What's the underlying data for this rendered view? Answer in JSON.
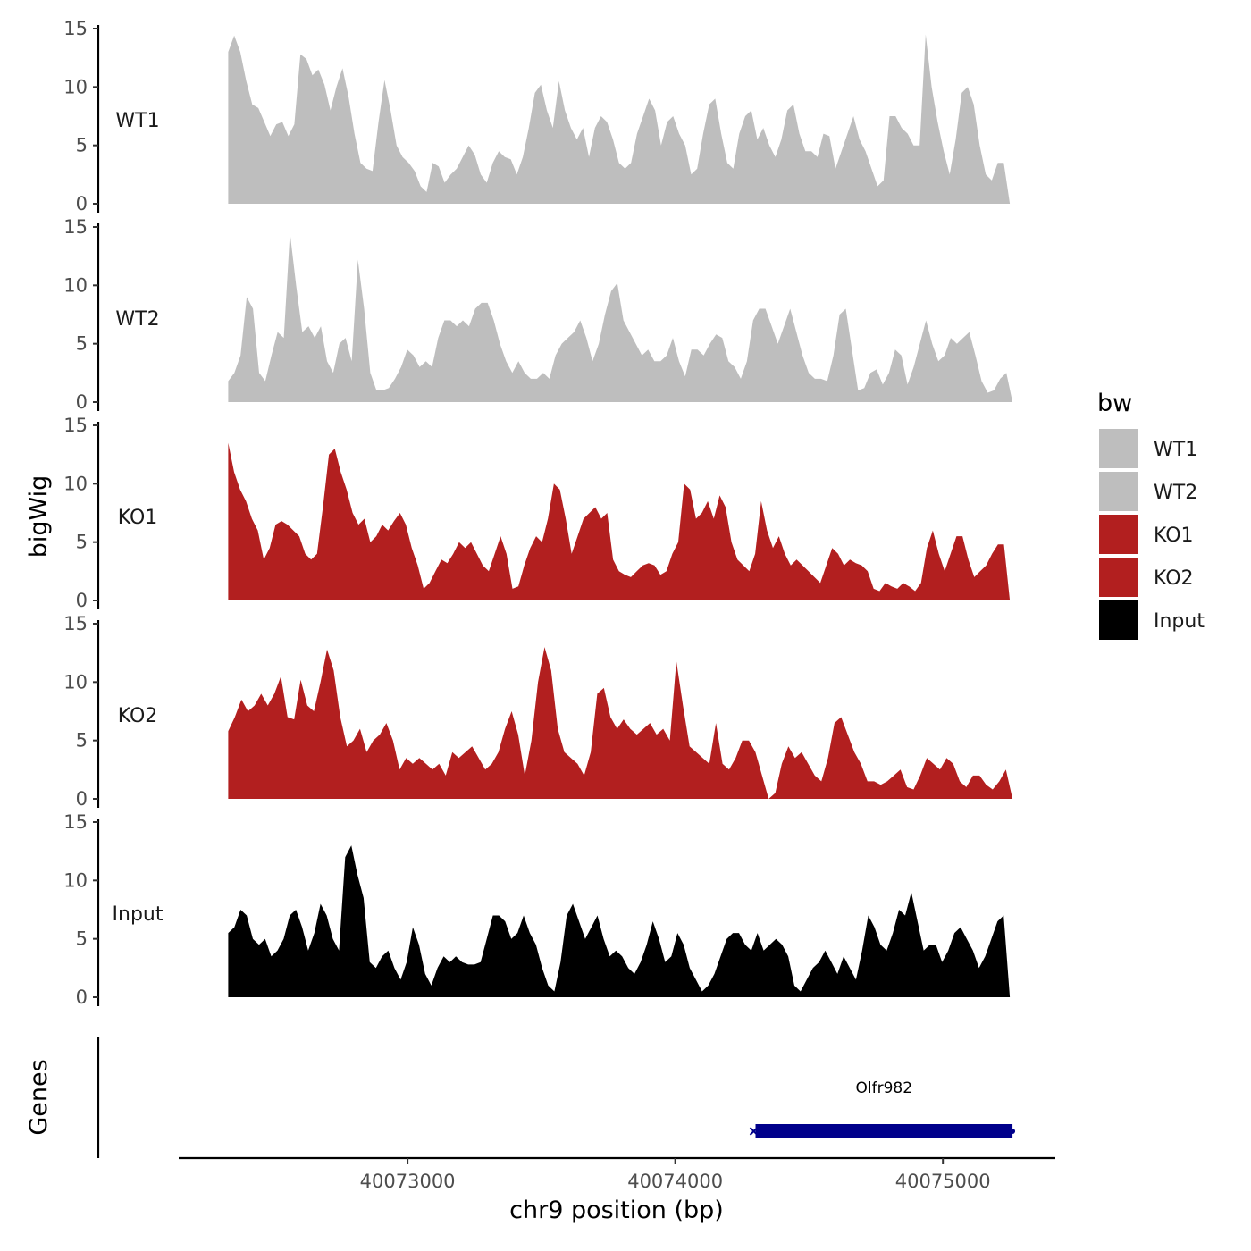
{
  "chart_data": {
    "type": "area",
    "title": "",
    "xlabel": "chr9 position (bp)",
    "ylabel": "bigWig",
    "genes_label": "Genes",
    "xlim": [
      40072145,
      40075420
    ],
    "x_ticks": [
      40073000,
      40074000,
      40075000
    ],
    "x_tick_labels": [
      "40073000",
      "40074000",
      "40075000"
    ],
    "ylim": [
      0,
      15
    ],
    "y_ticks": [
      0,
      5,
      10,
      15
    ],
    "y_tick_labels": [
      "0",
      "5",
      "10",
      "15"
    ],
    "legend_title": "bw",
    "legend": [
      {
        "name": "WT1",
        "color": "#bebebe"
      },
      {
        "name": "WT2",
        "color": "#bebebe"
      },
      {
        "name": "KO1",
        "color": "#b21f1f"
      },
      {
        "name": "KO2",
        "color": "#b21f1f"
      },
      {
        "name": "Input",
        "color": "#000000"
      }
    ],
    "series": [
      {
        "name": "WT1",
        "color": "#bebebe",
        "x_start": 40072330,
        "x_end": 40075250,
        "values": [
          13.0,
          14.4,
          13.0,
          10.5,
          8.5,
          8.2,
          7.0,
          5.8,
          6.8,
          7.0,
          5.8,
          6.8,
          12.8,
          12.4,
          11.0,
          11.5,
          10.2,
          8.0,
          10.0,
          11.6,
          9.2,
          6.0,
          3.5,
          3.0,
          2.8,
          7.0,
          10.6,
          8.0,
          5.0,
          4.0,
          3.5,
          2.8,
          1.5,
          1.0,
          3.5,
          3.2,
          1.8,
          2.5,
          3.0,
          4.0,
          5.0,
          4.2,
          2.5,
          1.8,
          3.5,
          4.5,
          4.0,
          3.8,
          2.5,
          4.0,
          6.5,
          9.5,
          10.2,
          8.0,
          6.5,
          10.5,
          8.0,
          6.5,
          5.5,
          6.5,
          4.0,
          6.5,
          7.5,
          7.0,
          5.5,
          3.5,
          3.0,
          3.5,
          6.0,
          7.5,
          9.0,
          8.0,
          5.0,
          7.0,
          7.5,
          6.0,
          5.0,
          2.5,
          3.0,
          6.0,
          8.5,
          9.0,
          6.0,
          3.5,
          3.0,
          6.0,
          7.5,
          8.0,
          5.5,
          6.5,
          5.0,
          4.0,
          5.5,
          8.0,
          8.5,
          6.0,
          4.5,
          4.5,
          4.0,
          6.0,
          5.8,
          3.0,
          4.5,
          6.0,
          7.5,
          5.5,
          4.5,
          3.0,
          1.5,
          2.0,
          7.5,
          7.5,
          6.5,
          6.0,
          5.0,
          5.0,
          14.5,
          10.0,
          7.0,
          4.5,
          2.5,
          5.5,
          9.5,
          10.0,
          8.5,
          5.0,
          2.5,
          2.0,
          3.5,
          3.5,
          0
        ]
      },
      {
        "name": "WT2",
        "color": "#bebebe",
        "x_start": 40072330,
        "x_end": 40075260,
        "values": [
          1.8,
          2.5,
          4.0,
          9.0,
          8.0,
          2.5,
          1.8,
          4.0,
          6.0,
          5.5,
          14.5,
          10.0,
          6.0,
          6.5,
          5.5,
          6.5,
          3.5,
          2.5,
          5.0,
          5.5,
          3.5,
          12.2,
          8.0,
          2.5,
          1.0,
          1.0,
          1.2,
          2.0,
          3.0,
          4.5,
          4.0,
          3.0,
          3.5,
          3.0,
          5.5,
          7.0,
          7.0,
          6.5,
          7.0,
          6.5,
          8.0,
          8.5,
          8.5,
          7.0,
          5.0,
          3.5,
          2.5,
          3.5,
          2.5,
          2.0,
          2.0,
          2.5,
          2.0,
          4.0,
          5.0,
          5.5,
          6.0,
          7.0,
          5.5,
          3.5,
          5.0,
          7.5,
          9.5,
          10.2,
          7.0,
          6.0,
          5.0,
          4.0,
          4.5,
          3.5,
          3.5,
          4.0,
          5.5,
          3.5,
          2.2,
          4.5,
          4.5,
          4.0,
          5.0,
          5.8,
          5.5,
          3.5,
          3.0,
          2.0,
          3.5,
          7.0,
          8.0,
          8.0,
          6.5,
          5.0,
          6.5,
          8.0,
          6.0,
          4.0,
          2.5,
          2.0,
          2.0,
          1.8,
          4.0,
          7.5,
          8.0,
          4.5,
          1.0,
          1.2,
          2.5,
          2.8,
          1.5,
          2.5,
          4.5,
          4.0,
          1.5,
          3.0,
          5.0,
          7.0,
          5.0,
          3.5,
          4.0,
          5.5,
          5.0,
          5.5,
          6.0,
          4.0,
          1.8,
          0.8,
          1.0,
          2.0,
          2.5,
          0
        ]
      },
      {
        "name": "KO1",
        "color": "#b21f1f",
        "x_start": 40072330,
        "x_end": 40075250,
        "values": [
          13.5,
          11.0,
          9.5,
          8.5,
          7.0,
          6.0,
          3.5,
          4.5,
          6.5,
          6.8,
          6.5,
          6.0,
          5.5,
          4.0,
          3.5,
          4.0,
          8.0,
          12.5,
          13.0,
          11.0,
          9.5,
          7.5,
          6.5,
          7.0,
          5.0,
          5.5,
          6.5,
          6.0,
          6.8,
          7.5,
          6.5,
          4.5,
          3.0,
          1.0,
          1.5,
          2.5,
          3.5,
          3.2,
          4.0,
          5.0,
          4.5,
          5.0,
          4.0,
          3.0,
          2.5,
          4.0,
          5.5,
          4.0,
          1.0,
          1.2,
          3.0,
          4.5,
          5.5,
          5.0,
          7.0,
          10.0,
          9.5,
          7.0,
          4.0,
          5.5,
          7.0,
          7.5,
          8.0,
          7.0,
          7.5,
          3.5,
          2.5,
          2.2,
          2.0,
          2.5,
          3.0,
          3.2,
          3.0,
          2.2,
          2.5,
          4.0,
          5.0,
          10.0,
          9.5,
          7.0,
          7.5,
          8.5,
          7.0,
          9.0,
          8.0,
          5.0,
          3.5,
          3.0,
          2.5,
          4.0,
          8.5,
          6.0,
          4.5,
          5.5,
          4.0,
          3.0,
          3.5,
          3.0,
          2.5,
          2.0,
          1.5,
          3.0,
          4.5,
          4.0,
          3.0,
          3.5,
          3.2,
          3.0,
          2.5,
          1.0,
          0.8,
          1.5,
          1.2,
          1.0,
          1.5,
          1.2,
          0.8,
          1.5,
          4.5,
          6.0,
          4.0,
          2.5,
          4.0,
          5.5,
          5.5,
          3.5,
          2.0,
          2.5,
          3.0,
          4.0,
          4.8,
          4.8,
          0
        ]
      },
      {
        "name": "KO2",
        "color": "#b21f1f",
        "x_start": 40072330,
        "x_end": 40075260,
        "values": [
          5.8,
          7.0,
          8.5,
          7.5,
          8.0,
          9.0,
          8.0,
          9.0,
          10.5,
          7.0,
          6.8,
          10.2,
          8.0,
          7.5,
          10.0,
          12.8,
          11.0,
          7.0,
          4.5,
          5.0,
          6.0,
          4.0,
          5.0,
          5.5,
          6.5,
          5.0,
          2.5,
          3.5,
          3.0,
          3.5,
          3.0,
          2.5,
          3.0,
          2.0,
          4.0,
          3.5,
          4.0,
          4.5,
          3.5,
          2.5,
          3.0,
          4.0,
          6.0,
          7.5,
          5.5,
          2.0,
          5.0,
          10.0,
          13.0,
          11.0,
          6.0,
          4.0,
          3.5,
          3.0,
          2.0,
          4.0,
          9.0,
          9.5,
          7.0,
          6.0,
          6.8,
          6.0,
          5.5,
          6.0,
          6.5,
          5.5,
          6.0,
          5.0,
          11.8,
          8.0,
          4.5,
          4.0,
          3.5,
          3.0,
          6.5,
          3.0,
          2.5,
          3.5,
          5.0,
          5.0,
          4.0,
          2.0,
          0,
          0.5,
          3.0,
          4.5,
          3.5,
          4.0,
          3.0,
          2.0,
          1.5,
          3.5,
          6.5,
          7.0,
          5.5,
          4.0,
          3.0,
          1.5,
          1.5,
          1.2,
          1.5,
          2.0,
          2.5,
          1.0,
          0.8,
          2.0,
          3.5,
          3.0,
          2.5,
          3.5,
          3.0,
          1.5,
          1.0,
          2.0,
          2.0,
          1.2,
          0.8,
          1.5,
          2.5,
          0
        ]
      },
      {
        "name": "Input",
        "color": "#000000",
        "x_start": 40072330,
        "x_end": 40075250,
        "values": [
          5.5,
          6.0,
          7.5,
          7.0,
          5.0,
          4.5,
          5.0,
          3.5,
          4.0,
          5.0,
          7.0,
          7.5,
          6.0,
          4.0,
          5.5,
          8.0,
          7.0,
          5.0,
          4.0,
          12.0,
          13.0,
          10.5,
          8.5,
          3.0,
          2.5,
          3.5,
          4.0,
          2.5,
          1.5,
          3.0,
          6.0,
          4.5,
          2.0,
          1.0,
          2.5,
          3.5,
          3.0,
          3.5,
          3.0,
          2.8,
          2.8,
          3.0,
          5.0,
          7.0,
          7.0,
          6.5,
          5.0,
          5.5,
          7.0,
          5.5,
          4.5,
          2.5,
          1.0,
          0.5,
          3.0,
          7.0,
          8.0,
          6.5,
          5.0,
          6.0,
          7.0,
          5.0,
          3.5,
          4.0,
          3.5,
          2.5,
          2.0,
          3.0,
          4.5,
          6.5,
          5.0,
          3.0,
          3.5,
          5.5,
          4.5,
          2.5,
          1.5,
          0.5,
          1.0,
          2.0,
          3.5,
          5.0,
          5.5,
          5.5,
          4.5,
          4.0,
          5.5,
          4.0,
          4.5,
          5.0,
          4.5,
          3.5,
          1.0,
          0.5,
          1.5,
          2.5,
          3.0,
          4.0,
          3.0,
          2.0,
          3.5,
          2.5,
          1.5,
          4.0,
          7.0,
          6.0,
          4.5,
          4.0,
          5.5,
          7.5,
          7.0,
          9.0,
          6.5,
          4.0,
          4.5,
          4.5,
          3.0,
          4.0,
          5.5,
          6.0,
          5.0,
          4.0,
          2.5,
          3.5,
          5.0,
          6.5,
          7.0,
          0
        ]
      }
    ],
    "genes": [
      {
        "name": "Olfr982",
        "start": 40074300,
        "end": 40075260,
        "color": "#00008b"
      }
    ]
  }
}
